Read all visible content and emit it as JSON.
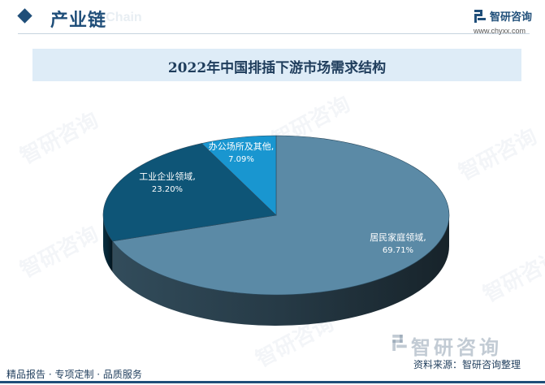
{
  "header": {
    "title": "产业链",
    "ghost_text": "ial Chain",
    "brand": "智研咨询",
    "url": "www.chyxx.com"
  },
  "chart_data": {
    "type": "pie",
    "title": "2022年中国排插下游市场需求结构",
    "slices": [
      {
        "label": "居民家庭领域,",
        "value": 69.71,
        "value_label": "69.71%",
        "color": "#5b8aa6"
      },
      {
        "label": "工业企业领域,",
        "value": 23.2,
        "value_label": "23.20%",
        "color": "#0e5577"
      },
      {
        "label": "办公场所及其他,",
        "value": 7.09,
        "value_label": "7.09%",
        "color": "#1996d0"
      }
    ]
  },
  "footer": {
    "left": "精品报告 · 专项定制 · 品质服务",
    "source": "资料来源：智研咨询整理",
    "brand": "智研咨询"
  },
  "watermark": "智研咨询"
}
